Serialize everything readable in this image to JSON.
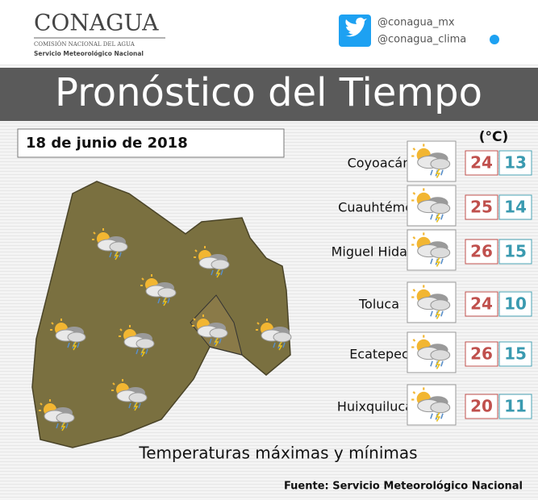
{
  "header": {
    "logo": "CONAGUA",
    "logo_sub": "COMISIÓN NACIONAL DEL AGUA",
    "logo_service": "Servicio Meteorológico Nacional",
    "handles": [
      "@conagua_mx",
      "@conagua_clima"
    ]
  },
  "title": "Pronóstico del Tiempo",
  "date": "18 de junio de 2018",
  "unit": "(°C)",
  "cities": [
    {
      "name": "Coyoacán",
      "max": 24,
      "min": 13
    },
    {
      "name": "Cuauhtémoc",
      "max": 25,
      "min": 14
    },
    {
      "name": "Miguel Hidalgo",
      "max": 26,
      "min": 15
    },
    {
      "name": "Toluca",
      "max": 24,
      "min": 10
    },
    {
      "name": "Ecatepec",
      "max": 26,
      "min": 15
    },
    {
      "name": "Huixquilucan",
      "max": 20,
      "min": 11
    }
  ],
  "subtitle": "Temperaturas máximas y mínimas",
  "source": "Fuente: Servicio Meteorológico Nacional"
}
